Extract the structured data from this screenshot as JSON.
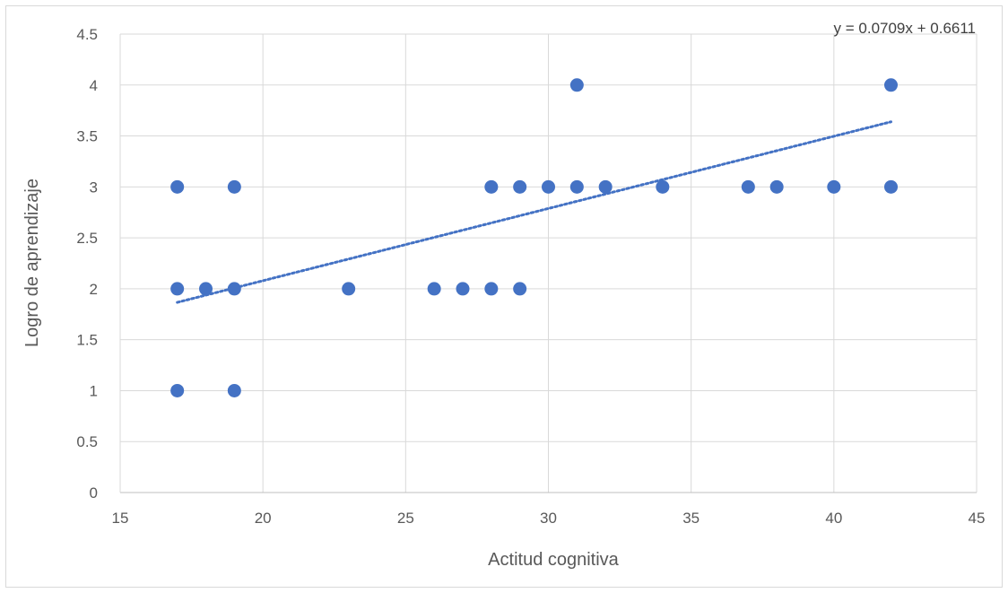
{
  "chart_data": {
    "type": "scatter",
    "title": "",
    "xlabel": "Actitud cognitiva",
    "ylabel": "Logro de aprendizaje",
    "xlim": [
      15,
      45
    ],
    "ylim": [
      0,
      4.5
    ],
    "x_ticks": [
      15,
      20,
      25,
      30,
      35,
      40,
      45
    ],
    "y_ticks": [
      0,
      0.5,
      1,
      1.5,
      2,
      2.5,
      3,
      3.5,
      4,
      4.5
    ],
    "x_tick_labels": [
      "15",
      "20",
      "25",
      "30",
      "35",
      "40",
      "45"
    ],
    "y_tick_labels": [
      "0",
      "0.5",
      "1",
      "1.5",
      "2",
      "2.5",
      "3",
      "3.5",
      "4",
      "4.5"
    ],
    "grid": true,
    "legend": "none",
    "marker_color": "#4472C4",
    "series": [
      {
        "points": [
          {
            "x": 17,
            "y": 3
          },
          {
            "x": 17,
            "y": 2
          },
          {
            "x": 17,
            "y": 1
          },
          {
            "x": 18,
            "y": 2
          },
          {
            "x": 19,
            "y": 3
          },
          {
            "x": 19,
            "y": 2
          },
          {
            "x": 19,
            "y": 1
          },
          {
            "x": 23,
            "y": 2
          },
          {
            "x": 26,
            "y": 2
          },
          {
            "x": 27,
            "y": 2
          },
          {
            "x": 28,
            "y": 3
          },
          {
            "x": 28,
            "y": 2
          },
          {
            "x": 29,
            "y": 3
          },
          {
            "x": 29,
            "y": 2
          },
          {
            "x": 30,
            "y": 3
          },
          {
            "x": 31,
            "y": 4
          },
          {
            "x": 31,
            "y": 3
          },
          {
            "x": 32,
            "y": 3
          },
          {
            "x": 34,
            "y": 3
          },
          {
            "x": 37,
            "y": 3
          },
          {
            "x": 38,
            "y": 3
          },
          {
            "x": 40,
            "y": 3
          },
          {
            "x": 42,
            "y": 4
          },
          {
            "x": 42,
            "y": 3
          }
        ]
      }
    ],
    "trendline": {
      "type": "linear",
      "style": "dotted",
      "slope": 0.0709,
      "intercept": 0.6611,
      "x_range": [
        17,
        42
      ],
      "equation_label": "y = 0.0709x + 0.6611"
    }
  }
}
